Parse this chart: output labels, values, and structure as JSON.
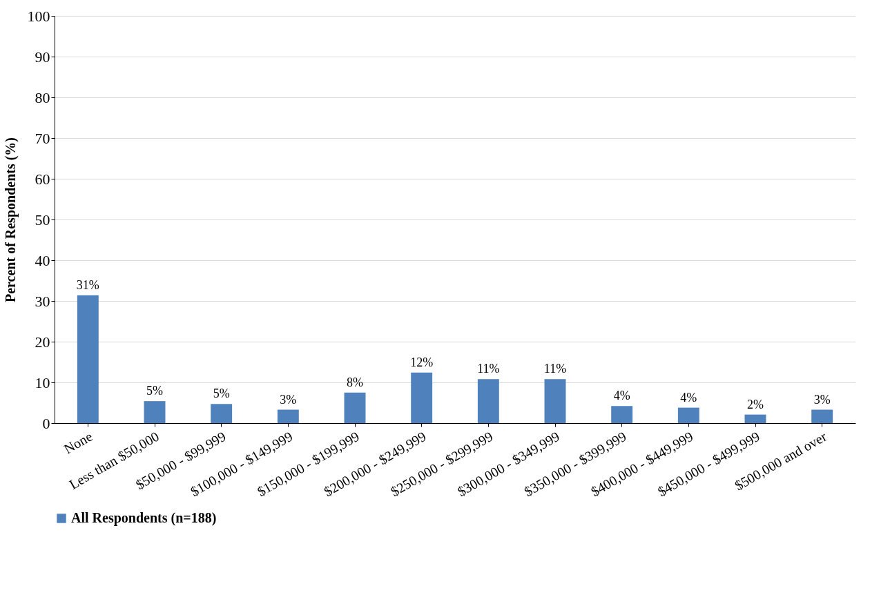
{
  "chart_data": {
    "type": "bar",
    "ylabel": "Percent of Respondents (%)",
    "categories": [
      "None",
      "Less than $50,000",
      "$50,000 - $99,999",
      "$100,000 - $149,999",
      "$150,000 - $199,999",
      "$200,000 - $249,999",
      "$250,000 - $299,999",
      "$300,000 - $349,999",
      "$350,000 - $399,999",
      "$400,000 - $449,999",
      "$450,000 - $499,999",
      "$500,000 and over"
    ],
    "series": [
      {
        "name": "All Respondents (n=188)",
        "color": "#4f81bd",
        "values": [
          31.4,
          5.4,
          4.7,
          3.3,
          7.5,
          12.4,
          10.8,
          10.8,
          4.2,
          3.8,
          2.1,
          3.3
        ],
        "value_labels": [
          "31%",
          "5%",
          "5%",
          "3%",
          "8%",
          "12%",
          "11%",
          "11%",
          "4%",
          "4%",
          "2%",
          "3%"
        ]
      }
    ],
    "ylim": [
      0,
      100
    ],
    "yticks": [
      0,
      10,
      20,
      30,
      40,
      50,
      60,
      70,
      80,
      90,
      100
    ],
    "grid": "y",
    "legend": "bottom"
  }
}
